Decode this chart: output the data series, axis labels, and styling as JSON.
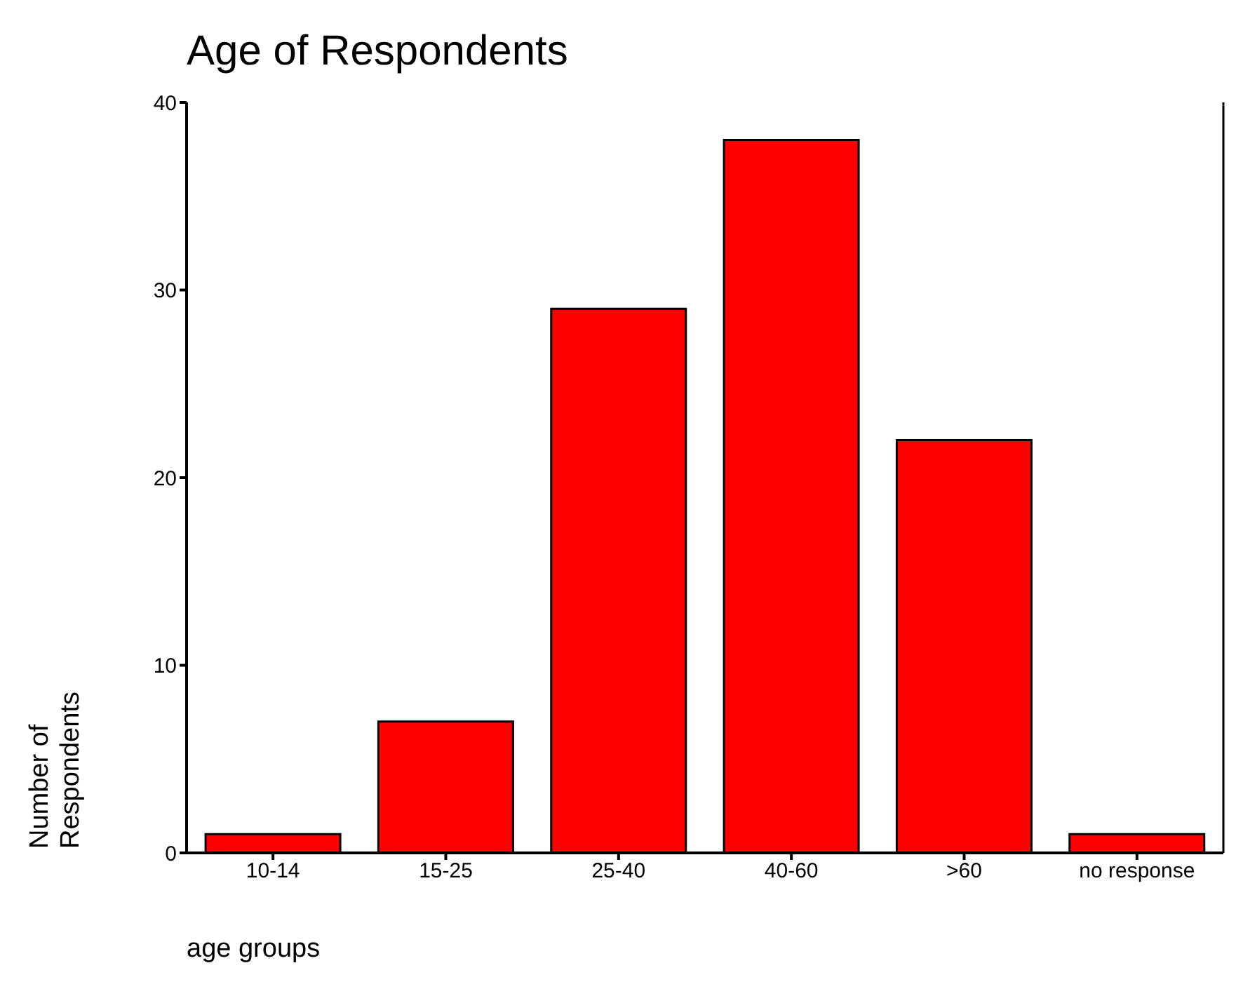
{
  "chart_data": {
    "type": "bar",
    "title": "Age of Respondents",
    "xlabel": "age groups",
    "ylabel": "Number of Respondents",
    "categories": [
      "10-14",
      "15-25",
      "25-40",
      "40-60",
      ">60",
      "no response"
    ],
    "values": [
      1,
      7,
      29,
      38,
      22,
      1
    ],
    "color": "#ff0000",
    "ylim": [
      0,
      40
    ],
    "yticks": [
      0,
      10,
      20,
      30,
      40
    ],
    "grid": false
  }
}
